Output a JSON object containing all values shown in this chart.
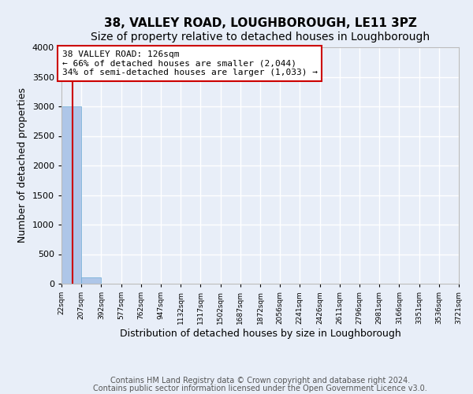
{
  "title": "38, VALLEY ROAD, LOUGHBOROUGH, LE11 3PZ",
  "subtitle": "Size of property relative to detached houses in Loughborough",
  "xlabel": "Distribution of detached houses by size in Loughborough",
  "ylabel": "Number of detached properties",
  "bin_edges": [
    22,
    207,
    392,
    577,
    762,
    947,
    1132,
    1317,
    1502,
    1687,
    1872,
    2056,
    2241,
    2426,
    2611,
    2796,
    2981,
    3166,
    3351,
    3536,
    3721
  ],
  "bar_heights": [
    3000,
    110,
    0,
    0,
    0,
    0,
    0,
    0,
    0,
    0,
    0,
    0,
    0,
    0,
    0,
    0,
    0,
    0,
    0,
    0
  ],
  "bar_color": "#aec6e8",
  "bar_edge_color": "#6aaad4",
  "background_color": "#e8eef8",
  "grid_color": "#ffffff",
  "vline_x": 126,
  "vline_color": "#cc0000",
  "annotation_line1": "38 VALLEY ROAD: 126sqm",
  "annotation_line2": "← 66% of detached houses are smaller (2,044)",
  "annotation_line3": "34% of semi-detached houses are larger (1,033) →",
  "annotation_box_color": "#ffffff",
  "annotation_border_color": "#cc0000",
  "ylim": [
    0,
    4000
  ],
  "yticks": [
    0,
    500,
    1000,
    1500,
    2000,
    2500,
    3000,
    3500,
    4000
  ],
  "footer_line1": "Contains HM Land Registry data © Crown copyright and database right 2024.",
  "footer_line2": "Contains public sector information licensed under the Open Government Licence v3.0.",
  "title_fontsize": 11,
  "subtitle_fontsize": 10,
  "xlabel_fontsize": 9,
  "ylabel_fontsize": 9,
  "annotation_fontsize": 8,
  "footer_fontsize": 7
}
